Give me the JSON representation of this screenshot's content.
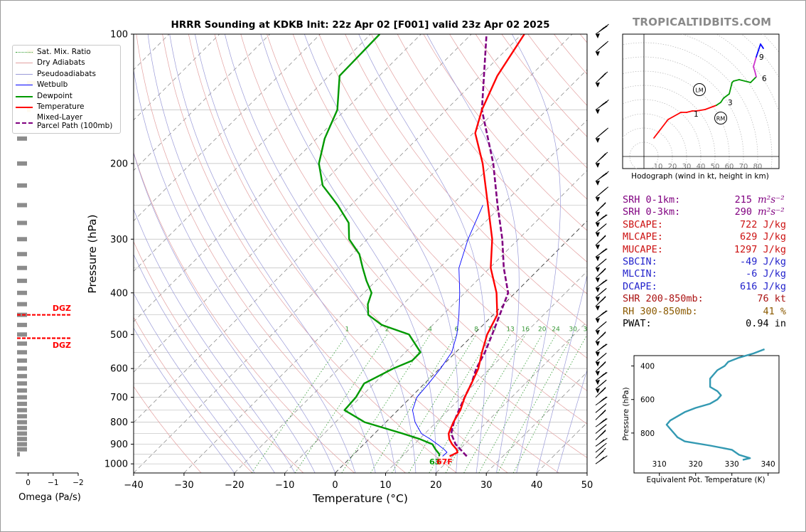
{
  "brand": "TROPICALTIDBITS.COM",
  "title": "HRRR Sounding at KDKB Init: 22z Apr 02 [F001] valid 23z Apr 02 2025",
  "colors": {
    "temperature": "#ff0000",
    "dewpoint": "#009900",
    "wetbulb": "#0000ff",
    "parcel": "#800080",
    "dgz": "#ff0000",
    "thetae": "#3399b2"
  },
  "legend": [
    {
      "label": "Sat. Mix. Ratio",
      "style": "dotted-green"
    },
    {
      "label": "Dry Adiabats",
      "style": "thin-red"
    },
    {
      "label": "Pseudoadiabats",
      "style": "thin-blue"
    },
    {
      "label": "Wetbulb",
      "style": "blue"
    },
    {
      "label": "Dewpoint",
      "style": "green"
    },
    {
      "label": "Temperature",
      "style": "red"
    },
    {
      "label": "Mixed-Layer\nParcel Path (100mb)",
      "style": "purple-dashed"
    }
  ],
  "dgz": {
    "label_top": "DGZ",
    "label_bottom": "DGZ",
    "top_p": 450,
    "bottom_p": 510
  },
  "surface_labels": {
    "dewpoint": "63",
    "temperature": "67F"
  },
  "indices": [
    {
      "label": "SRH 0-1km:",
      "value": "215",
      "unit": "m²s⁻²",
      "color": "#800080"
    },
    {
      "label": "SRH 0-3km:",
      "value": "290",
      "unit": "m²s⁻²",
      "color": "#800080"
    },
    {
      "label": "SBCAPE:",
      "value": "722 J/kg",
      "color": "#cc1111"
    },
    {
      "label": "MLCAPE:",
      "value": "629 J/kg",
      "color": "#cc1111"
    },
    {
      "label": "MUCAPE:",
      "value": "1297 J/kg",
      "color": "#cc1111"
    },
    {
      "label": "SBCIN:",
      "value": "-49 J/kg",
      "color": "#2222cc"
    },
    {
      "label": "MLCIN:",
      "value": "-6 J/kg",
      "color": "#2222cc"
    },
    {
      "label": "DCAPE:",
      "value": "616 J/kg",
      "color": "#2222cc"
    },
    {
      "label": "SHR 200-850mb:",
      "value": "76 kt",
      "color": "#aa1111"
    },
    {
      "label": "RH 300-850mb:",
      "value": "41 %",
      "color": "#8b5a00"
    },
    {
      "label": "PWAT:",
      "value": "0.94 in",
      "color": "#000000"
    }
  ],
  "chart_data": [
    {
      "type": "line",
      "title": "HRRR Sounding at KDKB Init: 22z Apr 02 [F001] valid 23z Apr 02 2025",
      "xlabel": "Temperature (°C)",
      "ylabel": "Pressure (hPa)",
      "xlim": [
        -40,
        50
      ],
      "ylim": [
        1050,
        100
      ],
      "yscale": "log",
      "xticks": [
        "−40",
        "−30",
        "−20",
        "−10",
        "0",
        "10",
        "20",
        "30",
        "40",
        "50"
      ],
      "yticks": [
        "100",
        "200",
        "300",
        "400",
        "500",
        "600",
        "700",
        "800",
        "900",
        "1000"
      ],
      "mixing_ratio_labels": [
        "1",
        "2",
        "4",
        "6",
        "8",
        "10",
        "13",
        "16",
        "20",
        "24",
        "30",
        "36"
      ],
      "series": [
        {
          "name": "Temperature",
          "p": [
            960,
            940,
            925,
            900,
            875,
            850,
            800,
            750,
            700,
            650,
            600,
            550,
            500,
            450,
            400,
            350,
            300,
            250,
            200,
            170,
            150,
            125,
            100
          ],
          "t": [
            19.4,
            20.2,
            19.4,
            17.5,
            15.9,
            14.7,
            13.4,
            12.4,
            10.7,
            9.3,
            7.7,
            5.2,
            2.7,
            0.8,
            -3.7,
            -9.8,
            -15.2,
            -22.8,
            -32.1,
            -39.6,
            -42.9,
            -46.6,
            -49.5
          ]
        },
        {
          "name": "Dewpoint",
          "p": [
            960,
            950,
            925,
            900,
            875,
            850,
            800,
            750,
            700,
            650,
            600,
            575,
            550,
            500,
            475,
            450,
            425,
            400,
            375,
            350,
            325,
            300,
            275,
            250,
            225,
            200,
            175,
            150,
            125,
            100
          ],
          "t": [
            17.3,
            17.0,
            15.2,
            13.6,
            10.0,
            5.6,
            -4.2,
            -10.6,
            -10.9,
            -12.0,
            -9.2,
            -7.0,
            -7.0,
            -12.8,
            -20.1,
            -24.8,
            -27.0,
            -28.5,
            -31.9,
            -35.2,
            -38.6,
            -43.6,
            -46.9,
            -52.6,
            -59.5,
            -64.6,
            -68.4,
            -71.6,
            -77.9,
            -78.2
          ]
        },
        {
          "name": "Wetbulb",
          "p": [
            960,
            940,
            925,
            900,
            875,
            850,
            800,
            750,
            700,
            650,
            600,
            550,
            500,
            450,
            400,
            350,
            300,
            250
          ],
          "t": [
            18.0,
            18.1,
            16.9,
            14.6,
            12.1,
            9.3,
            5.8,
            2.9,
            1.2,
            0.8,
            0.2,
            -0.8,
            -3.3,
            -6.8,
            -11.0,
            -16.1,
            -20.0,
            -23.8
          ]
        },
        {
          "name": "Mixed-Layer Parcel Path (100mb)",
          "p": [
            960,
            900,
            850,
            800,
            750,
            700,
            650,
            600,
            550,
            500,
            450,
            400,
            350,
            300,
            250,
            200,
            150,
            100
          ],
          "t": [
            22.8,
            18.2,
            15.2,
            13.5,
            12.1,
            10.7,
            9.3,
            7.3,
            5.8,
            3.7,
            1.3,
            -1.4,
            -7.2,
            -13.2,
            -20.9,
            -30.0,
            -42.9,
            -57.0
          ]
        }
      ]
    },
    {
      "type": "bar",
      "xlabel": "Omega (Pa/s)",
      "xlim": [
        0.5,
        -2.0
      ],
      "xticks": [
        "0",
        "−1",
        "−2"
      ],
      "p": [
        110,
        130,
        150,
        175,
        200,
        225,
        250,
        275,
        300,
        325,
        350,
        375,
        400,
        425,
        450,
        475,
        500,
        525,
        550,
        575,
        600,
        625,
        650,
        675,
        700,
        725,
        750,
        775,
        800,
        825,
        850,
        875,
        900,
        925,
        950
      ],
      "values": [
        0.2,
        0.7,
        0.05,
        0.2,
        0.2,
        0.2,
        0.2,
        0.2,
        0.2,
        0.2,
        0.2,
        0.2,
        0.2,
        0.2,
        0.2,
        0.2,
        0.2,
        0.2,
        0.2,
        0.2,
        0.2,
        0.2,
        0.2,
        0.2,
        0.2,
        0.2,
        0.2,
        0.2,
        0.2,
        0.2,
        0.2,
        0.2,
        0.2,
        0.05,
        0.02
      ],
      "colors_note": "gray with small yellow bars near top"
    },
    {
      "type": "line",
      "title": "Hodograph",
      "xlabel": "Hodograph (wind in kt, height in km)",
      "ring_labels": [
        "10",
        "20",
        "30",
        "40",
        "50",
        "60",
        "70",
        "80"
      ],
      "height_labels": [
        "1",
        "3",
        "6",
        "9"
      ],
      "markers": [
        "LM",
        "RM"
      ],
      "u_kt": [
        7,
        17,
        26,
        30,
        34,
        37,
        43,
        51,
        54,
        56,
        60,
        62,
        63,
        67,
        75,
        79,
        78,
        77,
        79,
        82,
        84
      ],
      "v_kt": [
        13,
        26,
        31,
        31,
        32,
        32,
        33,
        36,
        38,
        41,
        44,
        52,
        53,
        54,
        52,
        56,
        60,
        63,
        70,
        79,
        76
      ],
      "lm": {
        "u": 39,
        "v": 47
      },
      "rm": {
        "u": 54,
        "v": 27
      }
    },
    {
      "type": "line",
      "xlabel": "Equivalent Pot. Temperature (K)",
      "ylabel": "Pressure (hPa)",
      "xlim": [
        303,
        343
      ],
      "ylim": [
        1000,
        300
      ],
      "xticks": [
        "310",
        "320",
        "330",
        "340"
      ],
      "yticks": [
        "400",
        "600",
        "800"
      ],
      "p": [
        960,
        950,
        930,
        900,
        875,
        850,
        825,
        800,
        775,
        750,
        725,
        700,
        675,
        650,
        625,
        600,
        575,
        550,
        525,
        500,
        475,
        450,
        425,
        400,
        375,
        350,
        325,
        300
      ],
      "theta_e": [
        333,
        335,
        332,
        330,
        324,
        317,
        315,
        314,
        313,
        312,
        313,
        315,
        317,
        320,
        324,
        326,
        327,
        326,
        324,
        324,
        324,
        325,
        326,
        328,
        329,
        332,
        336,
        339
      ]
    }
  ]
}
